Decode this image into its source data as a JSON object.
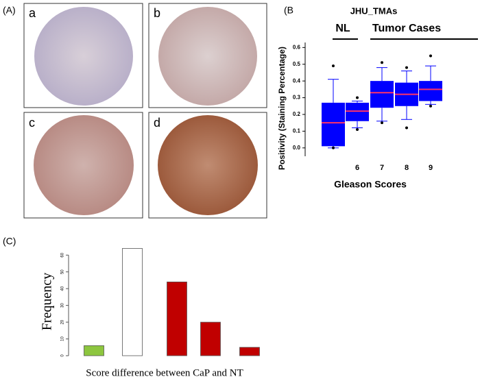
{
  "panel_labels": [
    "(A)",
    "(B",
    "(C)"
  ],
  "tissue_labels": [
    "a",
    "b",
    "c",
    "d"
  ],
  "chart_data": [
    {
      "type": "box",
      "title": "JHU_TMAs",
      "group_labels": [
        "NL",
        "Tumor Cases"
      ],
      "y_label": "Positivity (Staining Percentage)",
      "x_label": "Gleason Scores",
      "categories": [
        null,
        "6",
        "7",
        "8",
        "9"
      ],
      "box_color": "#0000ff",
      "median_color": "#ff3366",
      "ylim": [
        -0.05,
        0.63
      ],
      "yticks": [
        {
          "value": 0,
          "label": "0.0"
        },
        0.1,
        0.2,
        0.3,
        0.4,
        0.5,
        0.6
      ],
      "boxes": [
        {
          "min": 0.0,
          "q1": 0.01,
          "median": 0.15,
          "q3": 0.27,
          "max": 0.41,
          "outliers": [
            0.49,
            0.0
          ]
        },
        {
          "min": 0.12,
          "q1": 0.16,
          "median": 0.22,
          "q3": 0.27,
          "max": 0.28,
          "outliers": [
            0.3,
            0.11
          ]
        },
        {
          "min": 0.16,
          "q1": 0.24,
          "median": 0.33,
          "q3": 0.4,
          "max": 0.48,
          "outliers": [
            0.51,
            0.15
          ]
        },
        {
          "min": 0.17,
          "q1": 0.25,
          "median": 0.32,
          "q3": 0.39,
          "max": 0.46,
          "outliers": [
            0.48,
            0.12
          ]
        },
        {
          "min": 0.26,
          "q1": 0.28,
          "median": 0.35,
          "q3": 0.4,
          "max": 0.49,
          "outliers": [
            0.55,
            0.25
          ]
        }
      ]
    },
    {
      "type": "bar",
      "y_label": "Frequency",
      "x_label": "Score difference between CaP and NT",
      "categories": [
        null,
        null,
        null,
        null,
        null
      ],
      "values": [
        6,
        64,
        44,
        20,
        5
      ],
      "colors": [
        "#8dc63f",
        "#ffffff",
        "#c00000",
        "#c00000",
        "#c00000"
      ],
      "ylim": [
        0,
        65
      ],
      "yticks": [
        0,
        10,
        20,
        30,
        40,
        50,
        60
      ]
    }
  ]
}
